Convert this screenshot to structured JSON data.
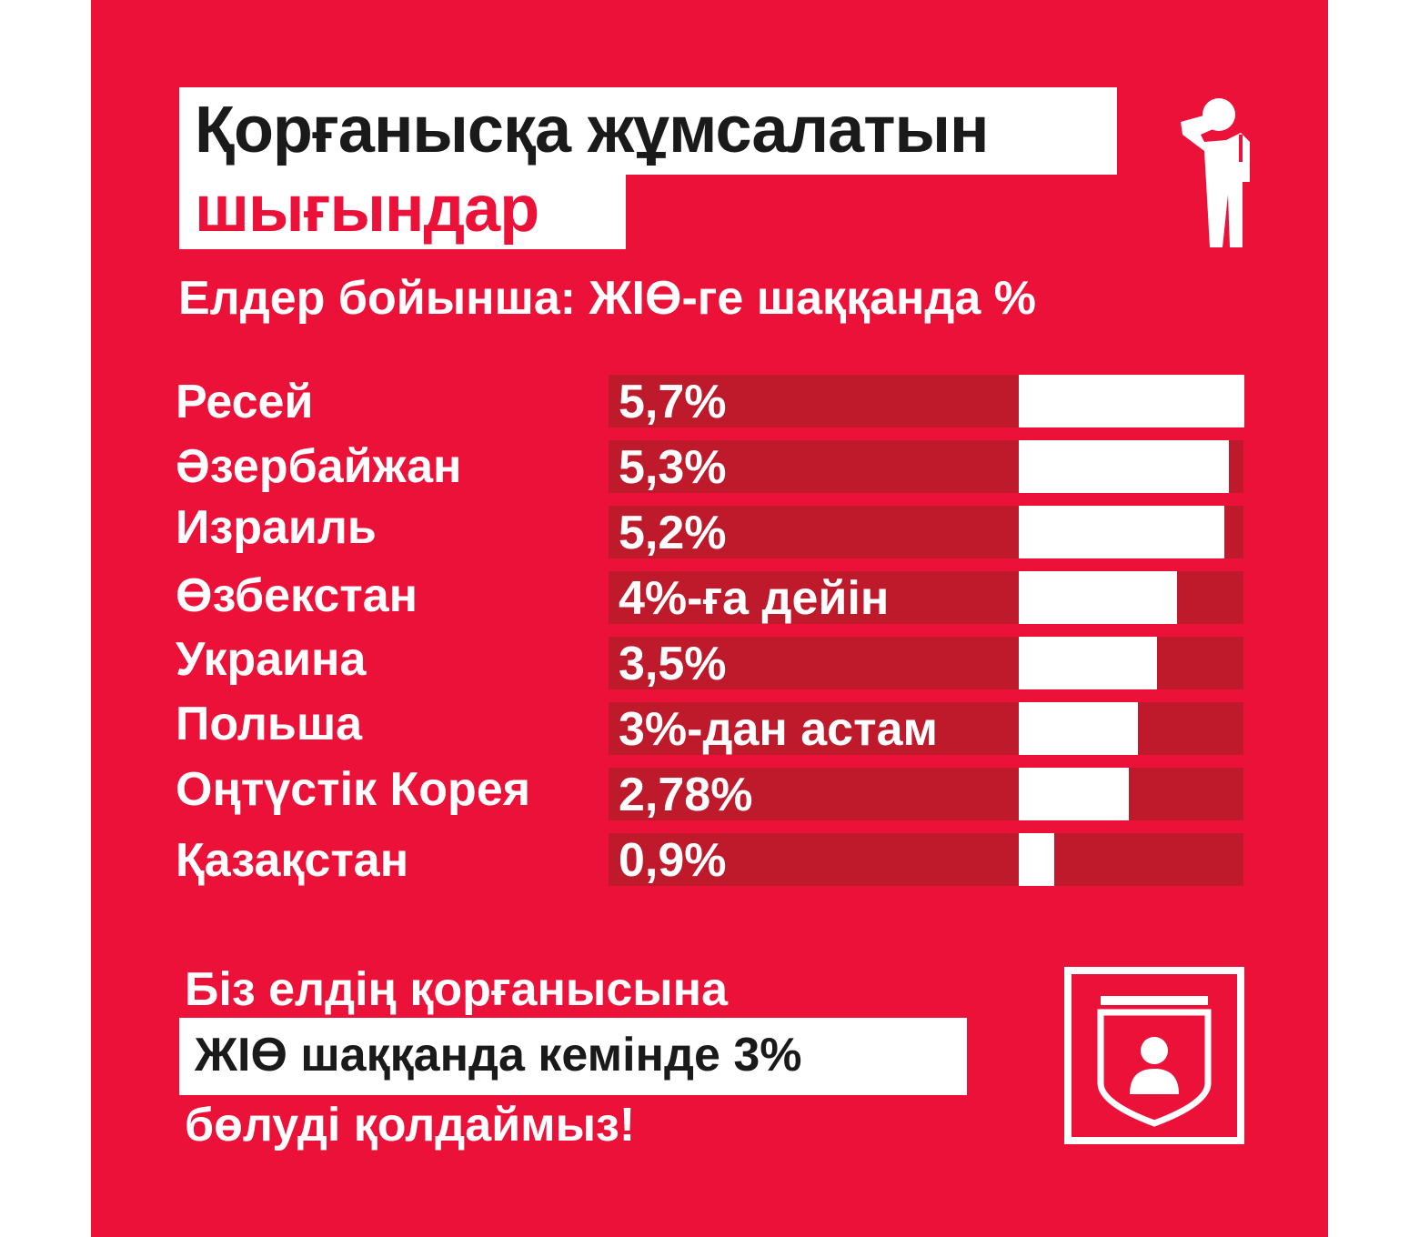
{
  "header": {
    "title_line1": "Қорғанысқа жұмсалатын",
    "title_line2": "шығындар",
    "subtitle": "Елдер бойынша: ЖІӨ-ге шаққанда %"
  },
  "chart_data": {
    "type": "bar",
    "orientation": "horizontal",
    "categories": [
      "Ресей",
      "Әзербайжан",
      "Израиль",
      "Өзбекстан",
      "Украина",
      "Польша",
      "Оңтүстік Корея",
      "Қазақстан"
    ],
    "values": [
      5.7,
      5.3,
      5.2,
      4.0,
      3.5,
      3.0,
      2.78,
      0.9
    ],
    "value_labels": [
      "5,7%",
      "5,3%",
      "5,2%",
      "4%-ға дейін",
      "3,5%",
      "3%-дан астам",
      "2,78%",
      "0,9%"
    ],
    "xlim": [
      0,
      5.7
    ],
    "grid": false,
    "legend": "none"
  },
  "footer": {
    "line1": "Біз елдің қорғанысына",
    "line2": "ЖІӨ шаққанда кемінде 3%",
    "line3": "бөлуді қолдаймыз!"
  },
  "icons": {
    "top": "saluting-soldier-icon",
    "bottom": "shield-person-icon"
  },
  "colors": {
    "background": "#ec1139",
    "bar_track": "#bf1a2c",
    "bar_fill": "#ffffff",
    "text": "#ffffff",
    "dark_text": "#1a1a1a"
  }
}
